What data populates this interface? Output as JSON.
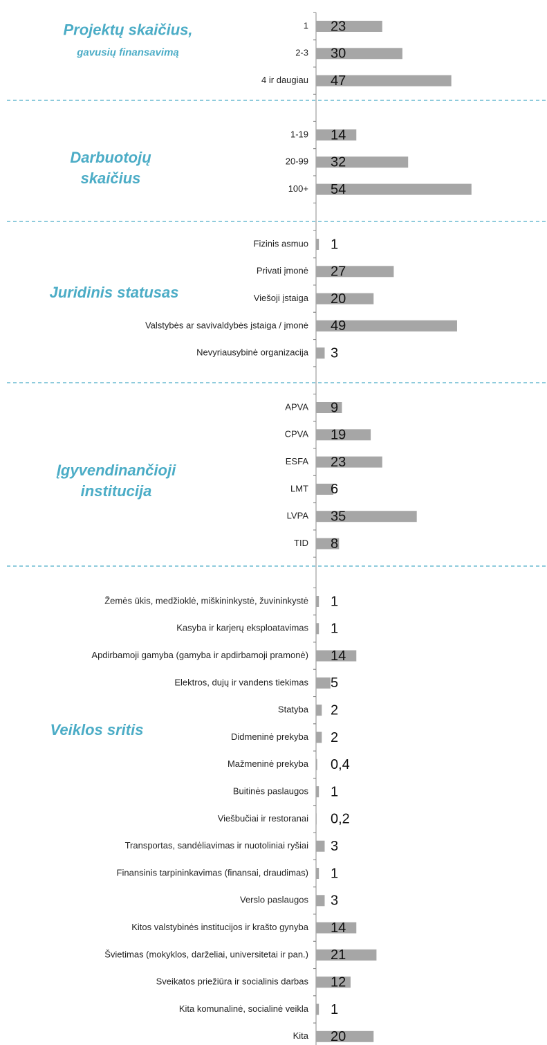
{
  "chart_data": [
    {
      "type": "bar",
      "title": "Projektų skaičius,",
      "subtitle": "gavusių finansavimą",
      "categories": [
        "1",
        "2-3",
        "4 ir daugiau"
      ],
      "values": [
        23,
        30,
        47
      ],
      "color": "#a6a6a6",
      "xlim": [
        0,
        80
      ]
    },
    {
      "type": "bar",
      "title": "Darbuotojų skaičius",
      "categories": [
        "1-19",
        "20-99",
        "100+"
      ],
      "values": [
        14,
        32,
        54
      ],
      "color": "#a6a6a6",
      "xlim": [
        0,
        80
      ]
    },
    {
      "type": "bar",
      "title": "Juridinis statusas",
      "categories": [
        "Fizinis asmuo",
        "Privati įmonė",
        "Viešoji įstaiga",
        "Valstybės ar savivaldybės įstaiga / įmonė",
        "Nevyriausybinė organizacija"
      ],
      "values": [
        1,
        27,
        20,
        49,
        3
      ],
      "color": "#a6a6a6",
      "xlim": [
        0,
        80
      ]
    },
    {
      "type": "bar",
      "title": "Įgyvendinančioji institucija",
      "categories": [
        "APVA",
        "CPVA",
        "ESFA",
        "LMT",
        "LVPA",
        "TID"
      ],
      "values": [
        9,
        19,
        23,
        6,
        35,
        8
      ],
      "color": "#a6a6a6",
      "xlim": [
        0,
        80
      ]
    },
    {
      "type": "bar",
      "title": "Veiklos sritis",
      "categories": [
        "Žemės ūkis, medžioklė, miškininkystė, žuvininkystė",
        "Kasyba ir karjerų eksploatavimas",
        "Apdirbamoji gamyba (gamyba ir apdirbamoji pramonė)",
        "Elektros, dujų ir vandens tiekimas",
        "Statyba",
        "Didmeninė prekyba",
        "Mažmeninė prekyba",
        "Buitinės paslaugos",
        "Viešbučiai ir restoranai",
        "Transportas, sandėliavimas ir nuotoliniai ryšiai",
        "Finansinis tarpininkavimas (finansai, draudimas)",
        "Verslo paslaugos",
        "Kitos valstybinės institucijos ir krašto gynyba",
        "Švietimas (mokyklos, darželiai, universitetai ir pan.)",
        "Sveikatos priežiūra ir socialinis darbas",
        "Kita komunalinė, socialinė veikla",
        "Kita"
      ],
      "values": [
        1,
        1,
        14,
        5,
        2,
        2,
        0.4,
        1,
        0.2,
        3,
        1,
        3,
        14,
        21,
        12,
        1,
        20
      ],
      "value_labels": [
        "1",
        "1",
        "14",
        "5",
        "2",
        "2",
        "0,4",
        "1",
        "0,2",
        "3",
        "1",
        "3",
        "14",
        "21",
        "12",
        "1",
        "20"
      ],
      "color": "#a6a6a6",
      "xlim": [
        0,
        80
      ]
    }
  ]
}
